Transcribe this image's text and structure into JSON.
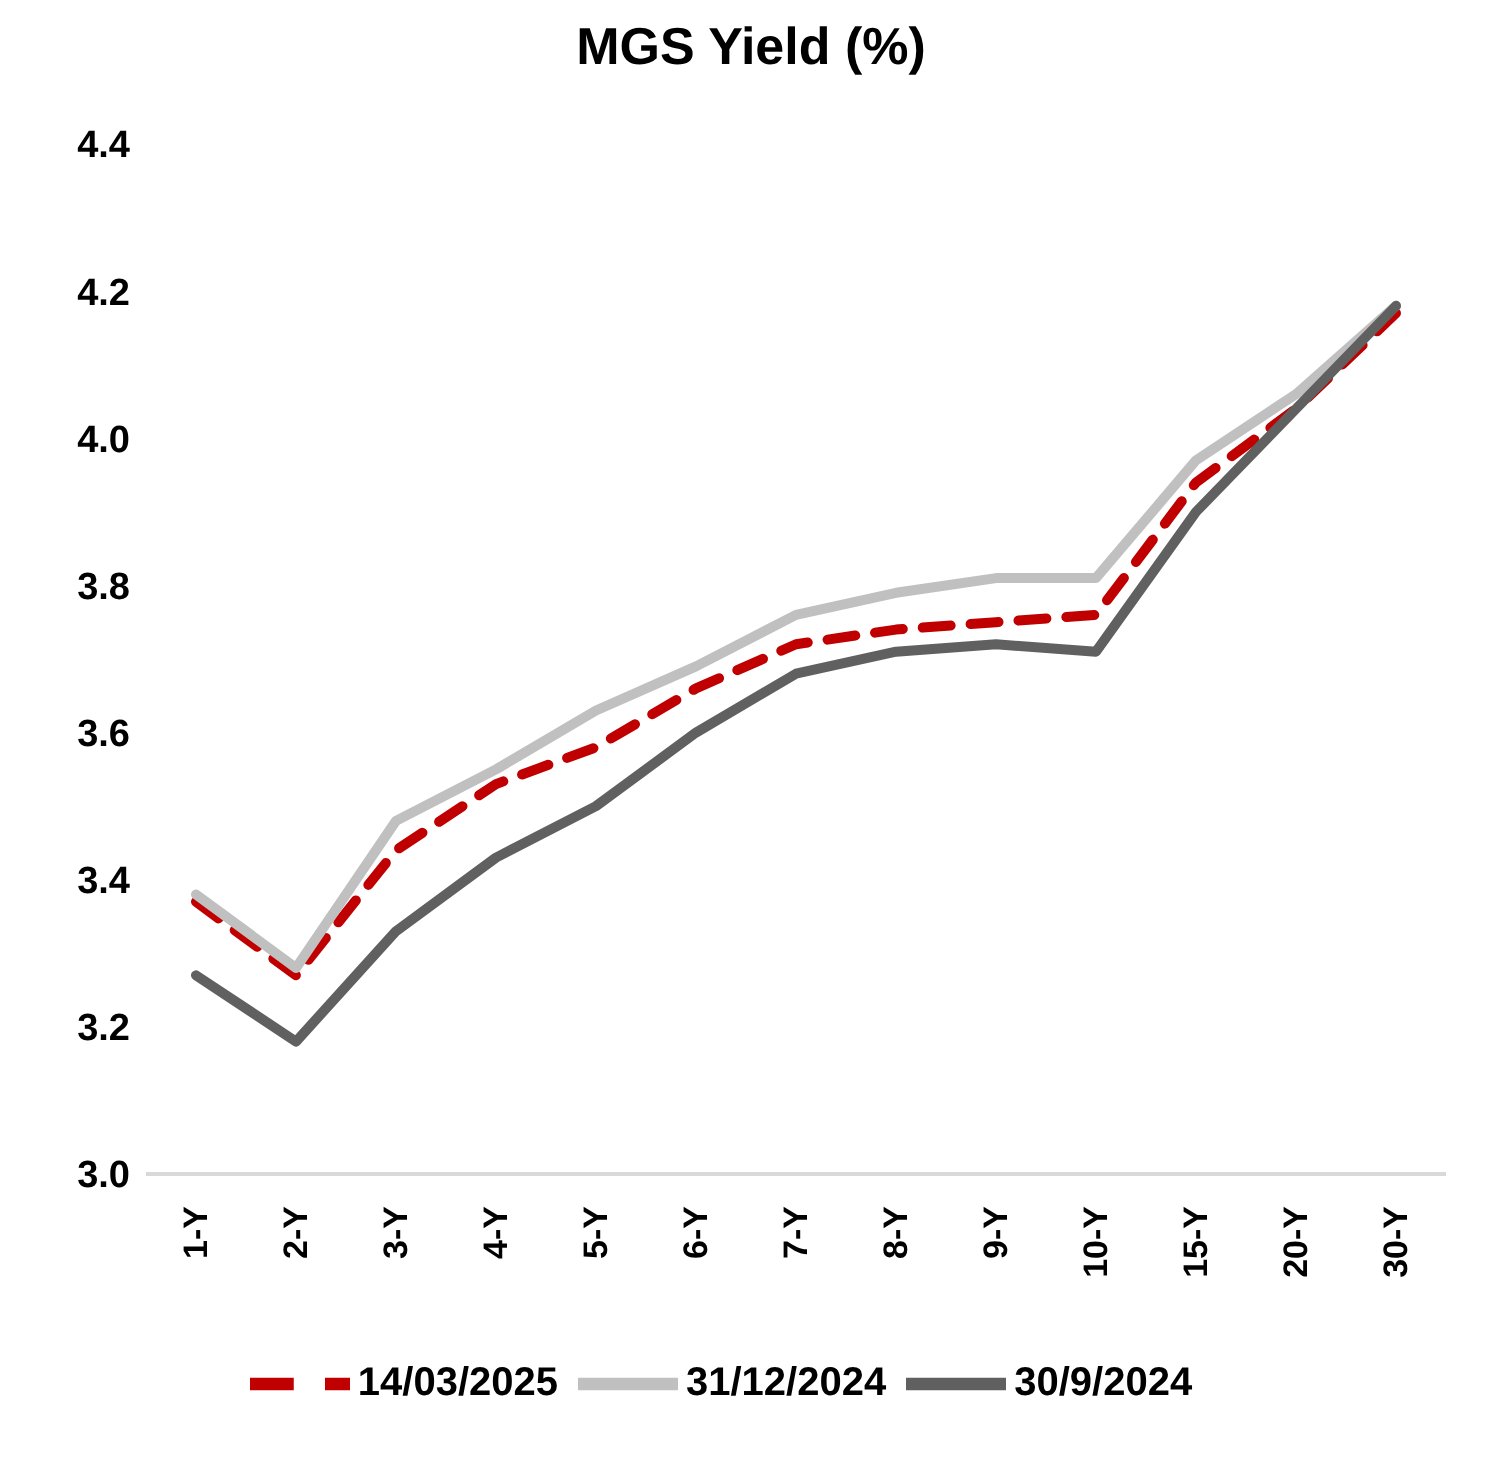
{
  "chart_data": {
    "type": "line",
    "title": "MGS Yield (%)",
    "categories": [
      "1-Y",
      "2-Y",
      "3-Y",
      "4-Y",
      "5-Y",
      "6-Y",
      "7-Y",
      "8-Y",
      "9-Y",
      "10-Y",
      "15-Y",
      "20-Y",
      "30-Y"
    ],
    "series": [
      {
        "name": "14/03/2025",
        "color": "#c00000",
        "line_style": "dashed",
        "values": [
          3.37,
          3.27,
          3.44,
          3.53,
          3.58,
          3.66,
          3.72,
          3.74,
          3.75,
          3.76,
          3.94,
          4.04,
          4.17
        ]
      },
      {
        "name": "31/12/2024",
        "color": "#c0c0c0",
        "line_style": "solid",
        "values": [
          3.38,
          3.28,
          3.48,
          3.55,
          3.63,
          3.69,
          3.76,
          3.79,
          3.81,
          3.81,
          3.97,
          4.06,
          4.18
        ]
      },
      {
        "name": "30/9/2024",
        "color": "#606060",
        "line_style": "solid",
        "values": [
          3.27,
          3.18,
          3.33,
          3.43,
          3.5,
          3.6,
          3.68,
          3.71,
          3.72,
          3.71,
          3.9,
          4.04,
          4.18
        ]
      }
    ],
    "ylim": [
      3.0,
      4.4
    ],
    "yticks": [
      {
        "value": 3,
        "label": "3.0"
      },
      3.2,
      3.4,
      3.6,
      3.8,
      {
        "value": 4,
        "label": "4.0"
      },
      4.2,
      4.4
    ],
    "grid": false,
    "legend": "bottom",
    "marker": "none"
  }
}
